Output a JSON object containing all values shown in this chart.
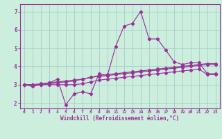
{
  "xlabel": "Windchill (Refroidissement éolien,°C)",
  "bg_color": "#cceedd",
  "grid_color": "#aacccc",
  "line_color": "#993399",
  "xlim": [
    -0.5,
    23.5
  ],
  "ylim": [
    1.7,
    7.4
  ],
  "yticks": [
    2,
    3,
    4,
    5,
    6,
    7
  ],
  "xticks": [
    0,
    1,
    2,
    3,
    4,
    5,
    6,
    7,
    8,
    9,
    10,
    11,
    12,
    13,
    14,
    15,
    16,
    17,
    18,
    19,
    20,
    21,
    22,
    23
  ],
  "x": [
    0,
    1,
    2,
    3,
    4,
    5,
    6,
    7,
    8,
    9,
    10,
    11,
    12,
    13,
    14,
    15,
    16,
    17,
    18,
    19,
    20,
    21,
    22,
    23
  ],
  "line1": [
    3.0,
    2.9,
    3.0,
    3.1,
    3.3,
    1.9,
    2.5,
    2.6,
    2.5,
    3.6,
    3.5,
    5.1,
    6.2,
    6.35,
    7.0,
    5.5,
    5.5,
    4.9,
    4.25,
    4.1,
    4.2,
    4.2,
    3.6,
    3.6
  ],
  "line2": [
    3.0,
    3.0,
    3.0,
    3.05,
    3.1,
    3.15,
    3.2,
    3.3,
    3.4,
    3.45,
    3.5,
    3.55,
    3.6,
    3.65,
    3.7,
    3.75,
    3.8,
    3.85,
    3.9,
    3.95,
    4.0,
    4.05,
    4.1,
    4.1
  ],
  "line3": [
    3.0,
    3.0,
    3.05,
    3.1,
    3.15,
    3.2,
    3.25,
    3.3,
    3.4,
    3.5,
    3.55,
    3.6,
    3.65,
    3.7,
    3.75,
    3.8,
    3.85,
    3.9,
    3.95,
    4.0,
    4.05,
    4.1,
    4.15,
    4.15
  ],
  "line4": [
    3.0,
    3.0,
    3.0,
    3.0,
    3.0,
    3.0,
    3.0,
    3.05,
    3.15,
    3.25,
    3.3,
    3.35,
    3.4,
    3.45,
    3.5,
    3.55,
    3.6,
    3.65,
    3.7,
    3.75,
    3.8,
    3.85,
    3.55,
    3.55
  ]
}
